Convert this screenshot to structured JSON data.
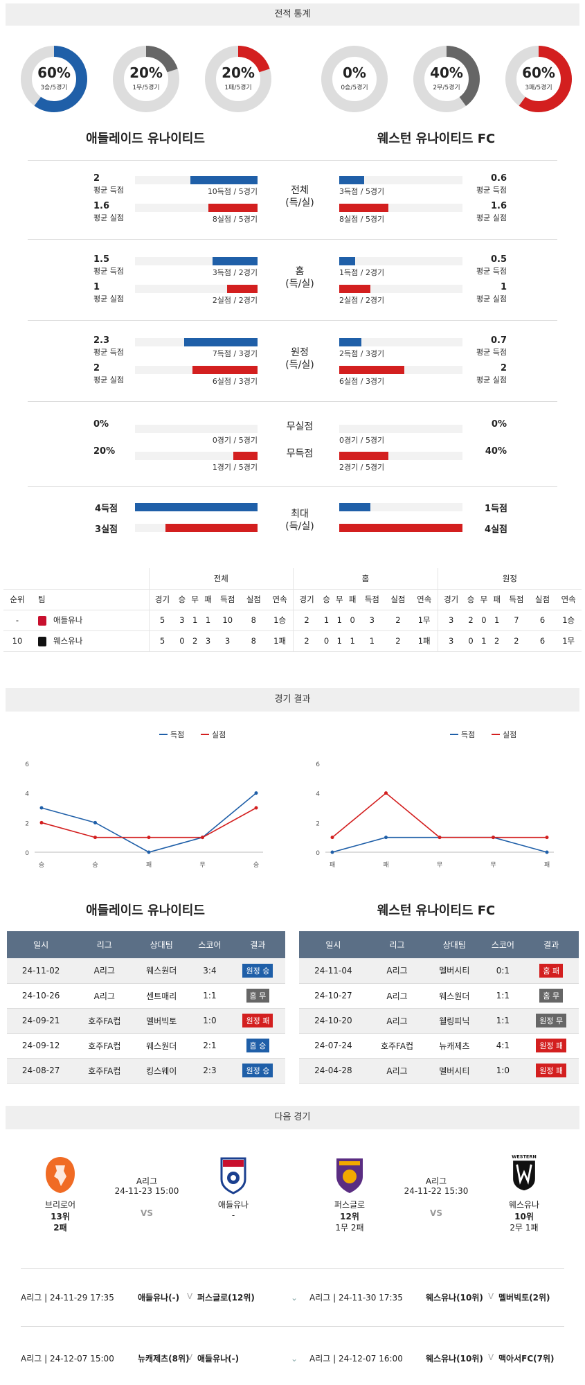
{
  "sections": {
    "stats_title": "전적 통계",
    "results_title": "경기 결과",
    "next_title": "다음 경기"
  },
  "colors": {
    "blue": "#1f5fa8",
    "red": "#d31f1f",
    "gray": "#666666",
    "track": "#dddddd"
  },
  "donuts": [
    {
      "pct": "60%",
      "sub": "3승/5경기",
      "fraction": 0.6,
      "color": "#1f5fa8"
    },
    {
      "pct": "20%",
      "sub": "1무/5경기",
      "fraction": 0.2,
      "color": "#666666"
    },
    {
      "pct": "20%",
      "sub": "1패/5경기",
      "fraction": 0.2,
      "color": "#d31f1f"
    },
    {
      "pct": "0%",
      "sub": "0승/5경기",
      "fraction": 0.0,
      "color": "#1f5fa8"
    },
    {
      "pct": "40%",
      "sub": "2무/5경기",
      "fraction": 0.4,
      "color": "#666666"
    },
    {
      "pct": "60%",
      "sub": "3패/5경기",
      "fraction": 0.6,
      "color": "#d31f1f"
    }
  ],
  "teams": {
    "home": "애들레이드 유나이티드",
    "away": "웨스턴 유나이티드 FC"
  },
  "stat_groups": [
    {
      "label": "전체\n(득/실)",
      "rows": [
        {
          "lval": "2",
          "llab": "평균 득점",
          "lcap": "10득점 / 5경기",
          "lfrac": 0.55,
          "rval": "0.6",
          "rlab": "평균 득점",
          "rcap": "3득점 / 5경기",
          "rfrac": 0.2,
          "color": "blue"
        },
        {
          "lval": "1.6",
          "llab": "평균 실점",
          "lcap": "8실점 / 5경기",
          "lfrac": 0.4,
          "rval": "1.6",
          "rlab": "평균 실점",
          "rcap": "8실점 / 5경기",
          "rfrac": 0.4,
          "color": "red"
        }
      ]
    },
    {
      "label": "홈\n(득/실)",
      "rows": [
        {
          "lval": "1.5",
          "llab": "평균 득점",
          "lcap": "3득점 / 2경기",
          "lfrac": 0.37,
          "rval": "0.5",
          "rlab": "평균 득점",
          "rcap": "1득점 / 2경기",
          "rfrac": 0.13,
          "color": "blue"
        },
        {
          "lval": "1",
          "llab": "평균 실점",
          "lcap": "2실점 / 2경기",
          "lfrac": 0.25,
          "rval": "1",
          "rlab": "평균 실점",
          "rcap": "2실점 / 2경기",
          "rfrac": 0.25,
          "color": "red"
        }
      ]
    },
    {
      "label": "원정\n(득/실)",
      "rows": [
        {
          "lval": "2.3",
          "llab": "평균 득점",
          "lcap": "7득점 / 3경기",
          "lfrac": 0.6,
          "rval": "0.7",
          "rlab": "평균 득점",
          "rcap": "2득점 / 3경기",
          "rfrac": 0.18,
          "color": "blue"
        },
        {
          "lval": "2",
          "llab": "평균 실점",
          "lcap": "6실점 / 3경기",
          "lfrac": 0.53,
          "rval": "2",
          "rlab": "평균 실점",
          "rcap": "6실점 / 3경기",
          "rfrac": 0.53,
          "color": "red"
        }
      ]
    }
  ],
  "clean": {
    "rows": [
      {
        "label": "무실점",
        "lval": "0%",
        "lcap": "0경기 / 5경기",
        "lfrac": 0.0,
        "rval": "0%",
        "rcap": "0경기 / 5경기",
        "rfrac": 0.0
      },
      {
        "label": "무득점",
        "lval": "20%",
        "lcap": "1경기 / 5경기",
        "lfrac": 0.2,
        "rval": "40%",
        "rcap": "2경기 / 5경기",
        "rfrac": 0.4
      }
    ]
  },
  "maxes": {
    "label": "최대\n(득/실)",
    "rows": [
      {
        "lval": "4득점",
        "lfrac": 1.0,
        "rval": "1득점",
        "rfrac": 0.25,
        "color": "blue"
      },
      {
        "lval": "3실점",
        "lfrac": 0.75,
        "rval": "4실점",
        "rfrac": 1.0,
        "color": "red"
      }
    ]
  },
  "standings": {
    "groups": [
      "전체",
      "홈",
      "원정"
    ],
    "headers": [
      "순위",
      "팀",
      "경기",
      "승",
      "무",
      "패",
      "득점",
      "실점",
      "연속",
      "경기",
      "승",
      "무",
      "패",
      "득점",
      "실점",
      "연속",
      "경기",
      "승",
      "무",
      "패",
      "득점",
      "실점",
      "연속"
    ],
    "rows": [
      [
        "-",
        "애들유나",
        "5",
        "3",
        "1",
        "1",
        "10",
        "8",
        "1승",
        "2",
        "1",
        "1",
        "0",
        "3",
        "2",
        "1무",
        "3",
        "2",
        "0",
        "1",
        "7",
        "6",
        "1승"
      ],
      [
        "10",
        "웨스유나",
        "5",
        "0",
        "2",
        "3",
        "3",
        "8",
        "1패",
        "2",
        "0",
        "1",
        "1",
        "1",
        "2",
        "1패",
        "3",
        "0",
        "1",
        "2",
        "2",
        "6",
        "1무"
      ]
    ]
  },
  "chart_data": [
    {
      "type": "line",
      "categories": [
        "승",
        "승",
        "패",
        "무",
        "승"
      ],
      "series": [
        {
          "name": "득점",
          "values": [
            3,
            2,
            0,
            1,
            4
          ]
        },
        {
          "name": "실점",
          "values": [
            2,
            1,
            1,
            1,
            3
          ]
        }
      ],
      "yticks": [
        "0",
        "2",
        "4",
        "6"
      ],
      "ylim": [
        0,
        6
      ],
      "legend": "top-right"
    },
    {
      "type": "line",
      "categories": [
        "패",
        "패",
        "무",
        "무",
        "패"
      ],
      "series": [
        {
          "name": "득점",
          "values": [
            0,
            1,
            1,
            1,
            0
          ]
        },
        {
          "name": "실점",
          "values": [
            1,
            4,
            1,
            1,
            1
          ]
        }
      ],
      "yticks": [
        "0",
        "2",
        "4",
        "6"
      ],
      "ylim": [
        0,
        6
      ],
      "legend": "top-right"
    }
  ],
  "results": {
    "headers": [
      "일시",
      "리그",
      "상대팀",
      "스코어",
      "결과"
    ],
    "home": [
      {
        "date": "24-11-02",
        "league": "A리그",
        "opp": "웨스원더",
        "score": "3:4",
        "result": "원정 승",
        "color": "#1f5fa8"
      },
      {
        "date": "24-10-26",
        "league": "A리그",
        "opp": "센트매리",
        "score": "1:1",
        "result": "홈 무",
        "color": "#666666"
      },
      {
        "date": "24-09-21",
        "league": "호주FA컵",
        "opp": "멜버빅토",
        "score": "1:0",
        "result": "원정 패",
        "color": "#d31f1f"
      },
      {
        "date": "24-09-12",
        "league": "호주FA컵",
        "opp": "웨스원더",
        "score": "2:1",
        "result": "홈 승",
        "color": "#1f5fa8"
      },
      {
        "date": "24-08-27",
        "league": "호주FA컵",
        "opp": "킹스웨이",
        "score": "2:3",
        "result": "원정 승",
        "color": "#1f5fa8"
      }
    ],
    "away": [
      {
        "date": "24-11-04",
        "league": "A리그",
        "opp": "멜버시티",
        "score": "0:1",
        "result": "홈 패",
        "color": "#d31f1f"
      },
      {
        "date": "24-10-27",
        "league": "A리그",
        "opp": "웨스원더",
        "score": "1:1",
        "result": "홈 무",
        "color": "#666666"
      },
      {
        "date": "24-10-20",
        "league": "A리그",
        "opp": "웰링피닉",
        "score": "1:1",
        "result": "원정 무",
        "color": "#666666"
      },
      {
        "date": "24-07-24",
        "league": "호주FA컵",
        "opp": "뉴캐제츠",
        "score": "4:1",
        "result": "원정 패",
        "color": "#d31f1f"
      },
      {
        "date": "24-04-28",
        "league": "A리그",
        "opp": "멜버시티",
        "score": "1:0",
        "result": "원정 패",
        "color": "#d31f1f"
      }
    ]
  },
  "next": {
    "left": {
      "home_name": "브리로어",
      "home_rank": "13위",
      "home_rec": "2패",
      "league": "A리그",
      "datetime": "24-11-23 15:00",
      "vs": "VS",
      "away_name": "애들유나",
      "away_rank": "-"
    },
    "right": {
      "home_name": "퍼스글로",
      "home_rank": "12위",
      "home_rec": "1무 2패",
      "league": "A리그",
      "datetime": "24-11-22 15:30",
      "vs": "VS",
      "away_name": "웨스유나",
      "away_rank": "10위",
      "away_rec": "2무 1패",
      "away_logo_text": "WESTERN"
    }
  },
  "schedule": [
    {
      "left_info": "A리그 | 24-11-29 17:35",
      "left_match": "애들유나(-)",
      "left_opp": "퍼스글로(12위)",
      "right_info": "A리그 | 24-11-30 17:35",
      "right_match": "웨스유나(10위)",
      "right_opp": "멜버빅토(2위)",
      "vs": "V"
    },
    {
      "left_info": "A리그 | 24-12-07 15:00",
      "left_match": "뉴캐제츠(8위)",
      "left_opp": "애들유나(-)",
      "right_info": "A리그 | 24-12-07 16:00",
      "right_match": "웨스유나(10위)",
      "right_opp": "맥아서FC(7위)",
      "vs": "V"
    }
  ]
}
